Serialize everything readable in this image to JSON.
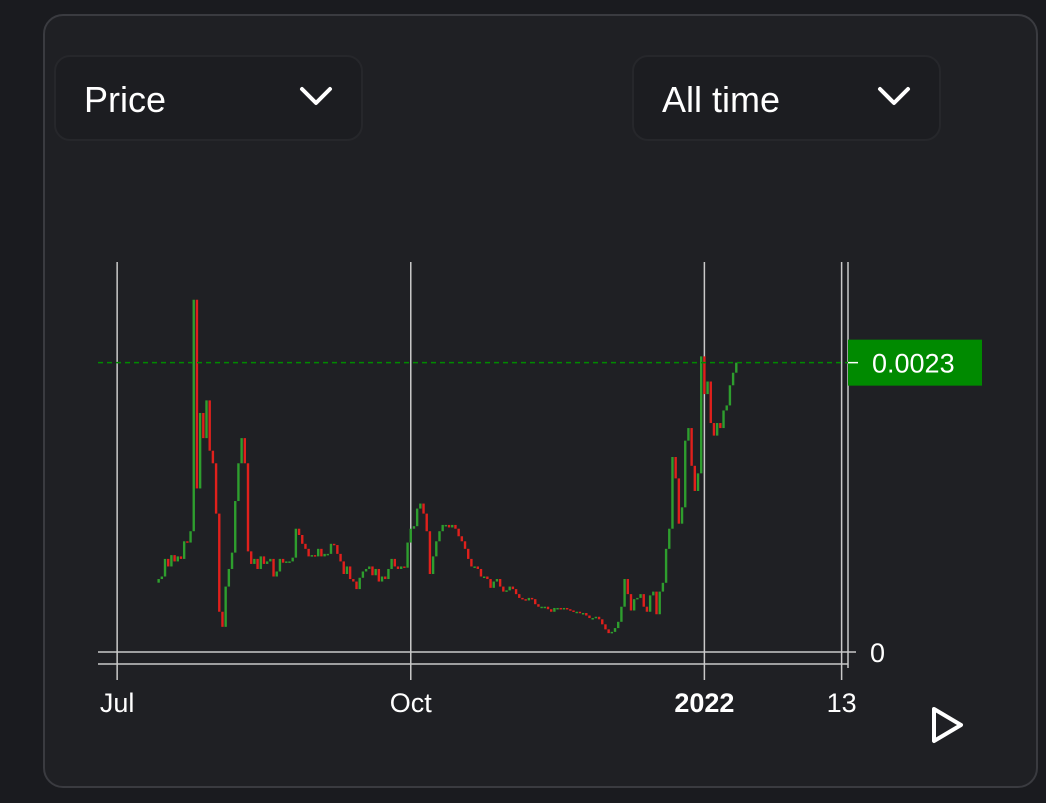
{
  "controls": {
    "metric_select": {
      "value": "Price"
    },
    "range_select": {
      "value": "All time"
    }
  },
  "colors": {
    "up": "#2e9e2e",
    "down": "#e0201c",
    "price_label_bg": "#008a00",
    "grid": "#c9c9c9",
    "background": "#1f2024"
  },
  "icons": {
    "dropdown": "chevron-down-icon",
    "play": "play-icon"
  },
  "chart_data": {
    "type": "candlestick",
    "x_ticks": [
      {
        "label": "Jul",
        "date": "2021-07-01",
        "bold": false
      },
      {
        "label": "Oct",
        "date": "2021-10-01",
        "bold": false
      },
      {
        "label": "2022",
        "date": "2022-01-01",
        "bold": true
      },
      {
        "label": "13",
        "date": "2022-02-13",
        "bold": false
      }
    ],
    "y_ticks": [
      {
        "label": "0",
        "value": 0
      }
    ],
    "x_range": [
      "2021-06-25",
      "2022-02-15"
    ],
    "y_range": [
      0,
      0.0031
    ],
    "grid": true,
    "current_price": {
      "label": "0.0023",
      "value": 0.0023
    },
    "close_series": {
      "start_date": "2021-07-14",
      "interval_days": 1,
      "values": [
        0.00058,
        0.0006,
        0.00074,
        0.00068,
        0.00077,
        0.00072,
        0.00076,
        0.00074,
        0.00088,
        0.00087,
        0.00096,
        0.0028,
        0.0013,
        0.0019,
        0.0017,
        0.002,
        0.0016,
        0.0015,
        0.0011,
        0.00032,
        0.0002,
        0.00052,
        0.00066,
        0.00079,
        0.0012,
        0.0015,
        0.0017,
        0.0015,
        0.0008,
        0.0007,
        0.00074,
        0.00066,
        0.00076,
        0.0007,
        0.00072,
        0.00074,
        0.0006,
        0.00064,
        0.00074,
        0.00071,
        0.00072,
        0.00072,
        0.00075,
        0.00098,
        0.00093,
        0.00086,
        0.00082,
        0.00076,
        0.00077,
        0.00076,
        0.00082,
        0.00076,
        0.00078,
        0.00078,
        0.00086,
        0.00085,
        0.00078,
        0.00072,
        0.00062,
        0.00068,
        0.00058,
        0.00056,
        0.0005,
        0.00059,
        0.00064,
        0.00066,
        0.00068,
        0.00061,
        0.00066,
        0.00056,
        0.0006,
        0.00058,
        0.00066,
        0.00074,
        0.00068,
        0.00066,
        0.00068,
        0.00067,
        0.00087,
        0.00098,
        0.001,
        0.00114,
        0.00118,
        0.0011,
        0.00096,
        0.00062,
        0.00076,
        0.00088,
        0.00096,
        0.00101,
        0.00101,
        0.00099,
        0.00101,
        0.00098,
        0.00092,
        0.00088,
        0.00082,
        0.00074,
        0.00068,
        0.00068,
        0.00066,
        0.0006,
        0.0006,
        0.00058,
        0.00051,
        0.00056,
        0.00058,
        0.00052,
        0.00048,
        0.00049,
        0.00052,
        0.0005,
        0.00046,
        0.00043,
        0.00042,
        0.00041,
        0.00043,
        0.00042,
        0.00038,
        0.00036,
        0.00036,
        0.00036,
        0.00034,
        0.00032,
        0.00035,
        0.00035,
        0.00034,
        0.00035,
        0.00034,
        0.00033,
        0.00032,
        0.00032,
        0.00031,
        0.00031,
        0.00029,
        0.00027,
        0.00027,
        0.00028,
        0.00026,
        0.00022,
        0.00018,
        0.00015,
        0.00016,
        0.00019,
        0.00024,
        0.00036,
        0.00058,
        0.00046,
        0.00033,
        0.00042,
        0.00043,
        0.00046,
        0.00036,
        0.00032,
        0.00045,
        0.00048,
        0.0003,
        0.00048,
        0.00055,
        0.00082,
        0.00098,
        0.00155,
        0.00138,
        0.00102,
        0.00115,
        0.00168,
        0.00178,
        0.00148,
        0.00128,
        0.00142,
        0.00235,
        0.00205,
        0.00215,
        0.00182,
        0.00172,
        0.00182,
        0.00178,
        0.00192,
        0.00196,
        0.00212,
        0.00222,
        0.0023
      ]
    }
  }
}
